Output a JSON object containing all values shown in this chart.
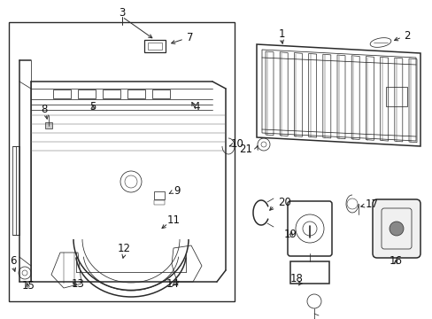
{
  "bg_color": "#ffffff",
  "line_color": "#2a2a2a",
  "lw_main": 0.9,
  "lw_thin": 0.55,
  "lw_thick": 1.1,
  "label_fs": 8.5,
  "label_color": "#111111"
}
